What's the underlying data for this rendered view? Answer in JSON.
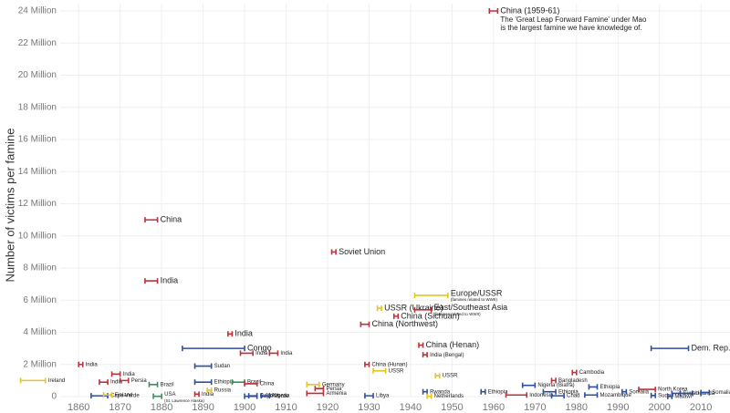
{
  "chart_data": {
    "type": "range",
    "ylabel": "Number of victims per famine",
    "annotation": [
      "The 'Great Leap Forward Famine' under Mao",
      "is the largest famine we have knowledge of."
    ],
    "xlim": [
      1845,
      2017
    ],
    "ylim": [
      0,
      24
    ],
    "xticks": [
      1860,
      1870,
      1880,
      1890,
      1900,
      1910,
      1920,
      1930,
      1940,
      1950,
      1960,
      1970,
      1980,
      1990,
      2000,
      2010
    ],
    "yticks": [
      0,
      {
        "value": 2,
        "label": "2 Million"
      },
      {
        "value": 4,
        "label": "4 Million"
      },
      {
        "value": 6,
        "label": "6 Million"
      },
      {
        "value": 8,
        "label": "8 Million"
      },
      {
        "value": 10,
        "label": "10 Million"
      },
      {
        "value": 12,
        "label": "12 Million"
      },
      {
        "value": 14,
        "label": "14 Million"
      },
      {
        "value": 16,
        "label": "16 Million"
      },
      {
        "value": 18,
        "label": "18 Million"
      },
      {
        "value": 20,
        "label": "20 Million"
      },
      {
        "value": 22,
        "label": "22 Million"
      },
      {
        "value": 24,
        "label": "24 Million"
      }
    ],
    "grid": true,
    "labels": [
      "Ireland",
      "India",
      "Cape Verde",
      "India",
      "Finland",
      "India",
      "Persia",
      "China",
      "India",
      "Brazil",
      "USA",
      "Congo",
      "Sudan",
      "Ethiopia",
      "India",
      "Russia",
      "India",
      "Brazil",
      "China",
      "India",
      "Cape Verde",
      "S.Africa",
      "Nigeria",
      "India",
      "Germany",
      "Persia",
      "Armenia",
      "Soviet Union",
      "China (Northwest)",
      "China (Hunan)",
      "USSR",
      "Libya",
      "USSR (Ukraine)",
      "China (Sichuan)",
      "Europe/USSR",
      "East/Southeast Asia",
      "China (Henan)",
      "India (Bengal)",
      "Rwanda",
      "Netherlands",
      "USSR",
      "Ethiopia",
      "China (1959-61)",
      "Indonesia",
      "Nigeria (Biafra)",
      "Bangladesh",
      "Ethiopia",
      "Chad",
      "Cambodia",
      "Ethiopia",
      "Mozambique",
      "Somalia",
      "North Korea",
      "Sudan",
      "Dem. Rep. of Congo",
      "Sudan",
      "Malawi",
      "Uganda",
      "Somalia"
    ],
    "sublabels": [
      null,
      null,
      null,
      null,
      null,
      null,
      null,
      null,
      null,
      null,
      "(St. Lawrence Alaska)",
      null,
      null,
      null,
      null,
      null,
      null,
      null,
      null,
      null,
      null,
      null,
      null,
      null,
      null,
      null,
      null,
      null,
      null,
      null,
      null,
      null,
      null,
      null,
      "(famines related to WWII)",
      "(famines related to WWII)",
      null,
      null,
      null,
      null,
      null,
      null,
      null,
      null,
      null,
      null,
      null,
      null,
      null,
      null,
      null,
      null,
      null,
      null,
      null,
      null,
      null,
      null,
      null
    ],
    "x_start": [
      1846,
      1860,
      1863,
      1865,
      1866,
      1868,
      1870,
      1876,
      1876,
      1877,
      1878,
      1885,
      1888,
      1888,
      1888,
      1891,
      1896,
      1897,
      1900,
      1899,
      1900,
      1901,
      1904,
      1906,
      1915,
      1917,
      1915,
      1921,
      1928,
      1929,
      1931,
      1929,
      1932,
      1936,
      1941,
      1941,
      1942,
      1943,
      1943,
      1944,
      1946,
      1957,
      1959,
      1963,
      1967,
      1974,
      1972,
      1974,
      1979,
      1983,
      1982,
      1991,
      1995,
      1998,
      1998,
      2003,
      2002,
      2005,
      2010
    ],
    "x_end": [
      1852,
      1861,
      1867,
      1867,
      1868,
      1870,
      1872,
      1879,
      1879,
      1879,
      1880,
      1900,
      1892,
      1892,
      1889,
      1892,
      1897,
      1900,
      1903,
      1902,
      1903,
      1903,
      1906,
      1908,
      1918,
      1919,
      1919,
      1922,
      1930,
      1930,
      1934,
      1931,
      1933,
      1937,
      1949,
      1945,
      1943,
      1944,
      1944,
      1945,
      1947,
      1958,
      1961,
      1968,
      1970,
      1975,
      1975,
      1977,
      1980,
      1985,
      1985,
      1992,
      1999,
      1999,
      2007,
      2005,
      2003,
      2008,
      2012
    ],
    "values": [
      1.0,
      2.0,
      0.05,
      0.9,
      0.1,
      1.4,
      1.0,
      11,
      7.2,
      0.75,
      0.02,
      3.0,
      1.9,
      0.9,
      0.15,
      0.4,
      3.9,
      0.9,
      0.8,
      2.7,
      0.02,
      0.05,
      0.05,
      2.7,
      0.75,
      0.5,
      0.2,
      9,
      4.5,
      2.0,
      1.6,
      0.05,
      5.5,
      5.0,
      6.3,
      5.4,
      3.2,
      2.6,
      0.3,
      0.02,
      1.3,
      0.3,
      24,
      0.1,
      0.7,
      1.0,
      0.3,
      0.05,
      1.5,
      0.6,
      0.1,
      0.3,
      0.45,
      0.07,
      3.0,
      0.2,
      0.01,
      0.2,
      0.25
    ],
    "colors": [
      "#e8c51f",
      "#c0303a",
      "#2f4fa0",
      "#c0303a",
      "#e8c51f",
      "#c0303a",
      "#c0303a",
      "#c0303a",
      "#c0303a",
      "#3c8c5c",
      "#3c8c5c",
      "#2f4fa0",
      "#2f4fa0",
      "#2f4fa0",
      "#c0303a",
      "#e8c51f",
      "#c0303a",
      "#3c8c5c",
      "#c0303a",
      "#c0303a",
      "#2f4fa0",
      "#2f4fa0",
      "#2f4fa0",
      "#c0303a",
      "#e8c51f",
      "#c0303a",
      "#c0303a",
      "#c0303a",
      "#c0303a",
      "#c0303a",
      "#e8c51f",
      "#2f4fa0",
      "#e8c51f",
      "#c0303a",
      "#e8c51f",
      "#c0303a",
      "#c0303a",
      "#c0303a",
      "#2f4fa0",
      "#e8c51f",
      "#e8c51f",
      "#2f4fa0",
      "#c0303a",
      "#c0303a",
      "#2f4fa0",
      "#c0303a",
      "#2f4fa0",
      "#2f4fa0",
      "#c0303a",
      "#2f4fa0",
      "#2f4fa0",
      "#2f4fa0",
      "#c0303a",
      "#2f4fa0",
      "#2f4fa0",
      "#2f4fa0",
      "#2f4fa0",
      "#2f4fa0",
      "#2f4fa0"
    ]
  }
}
